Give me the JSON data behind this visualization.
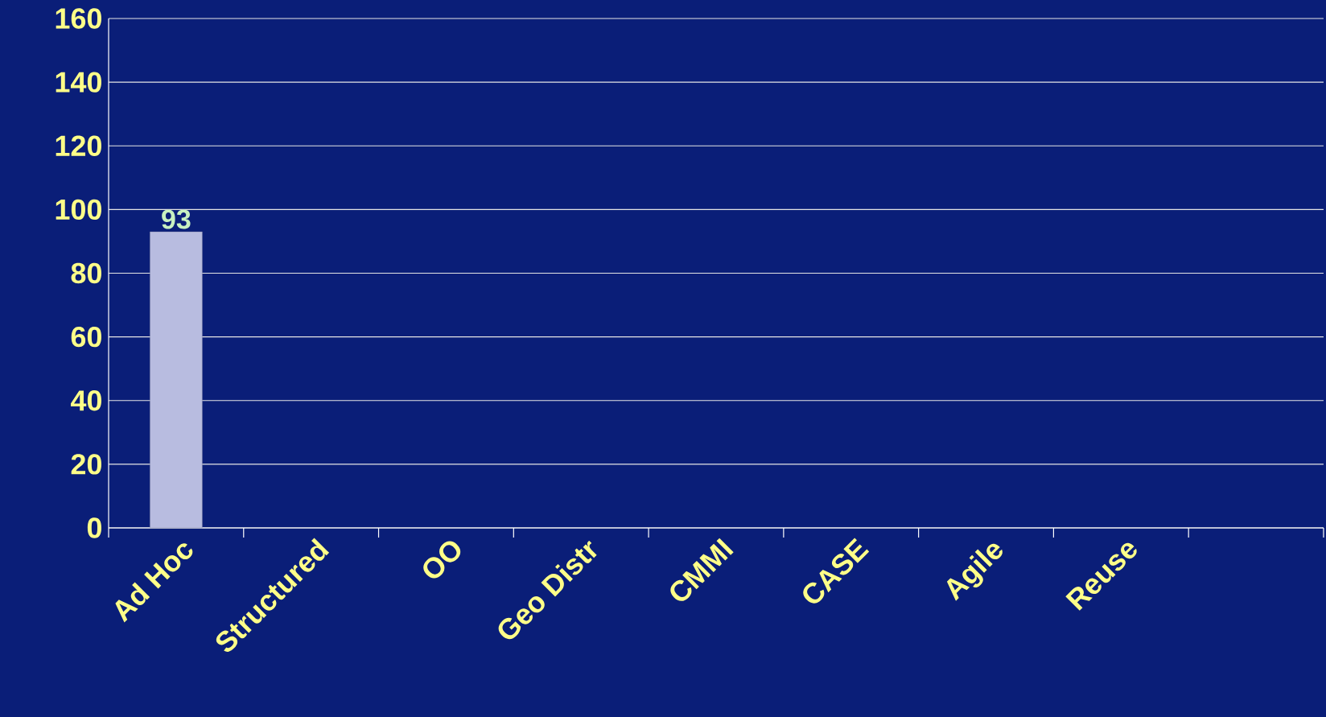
{
  "chart_data": {
    "type": "bar",
    "categories": [
      "Ad Hoc",
      "Structured",
      "OO",
      "Geo Distr",
      "CMMI",
      "CASE",
      "Agile",
      "Reuse",
      null
    ],
    "values": [
      93,
      null,
      null,
      null,
      null,
      null,
      null,
      null,
      null
    ],
    "color": "#b8bce0",
    "ylim": [
      0,
      160
    ],
    "yticks": [
      0,
      20,
      40,
      60,
      80,
      100,
      120,
      140,
      160
    ],
    "grid": "y",
    "data_labels": true
  }
}
